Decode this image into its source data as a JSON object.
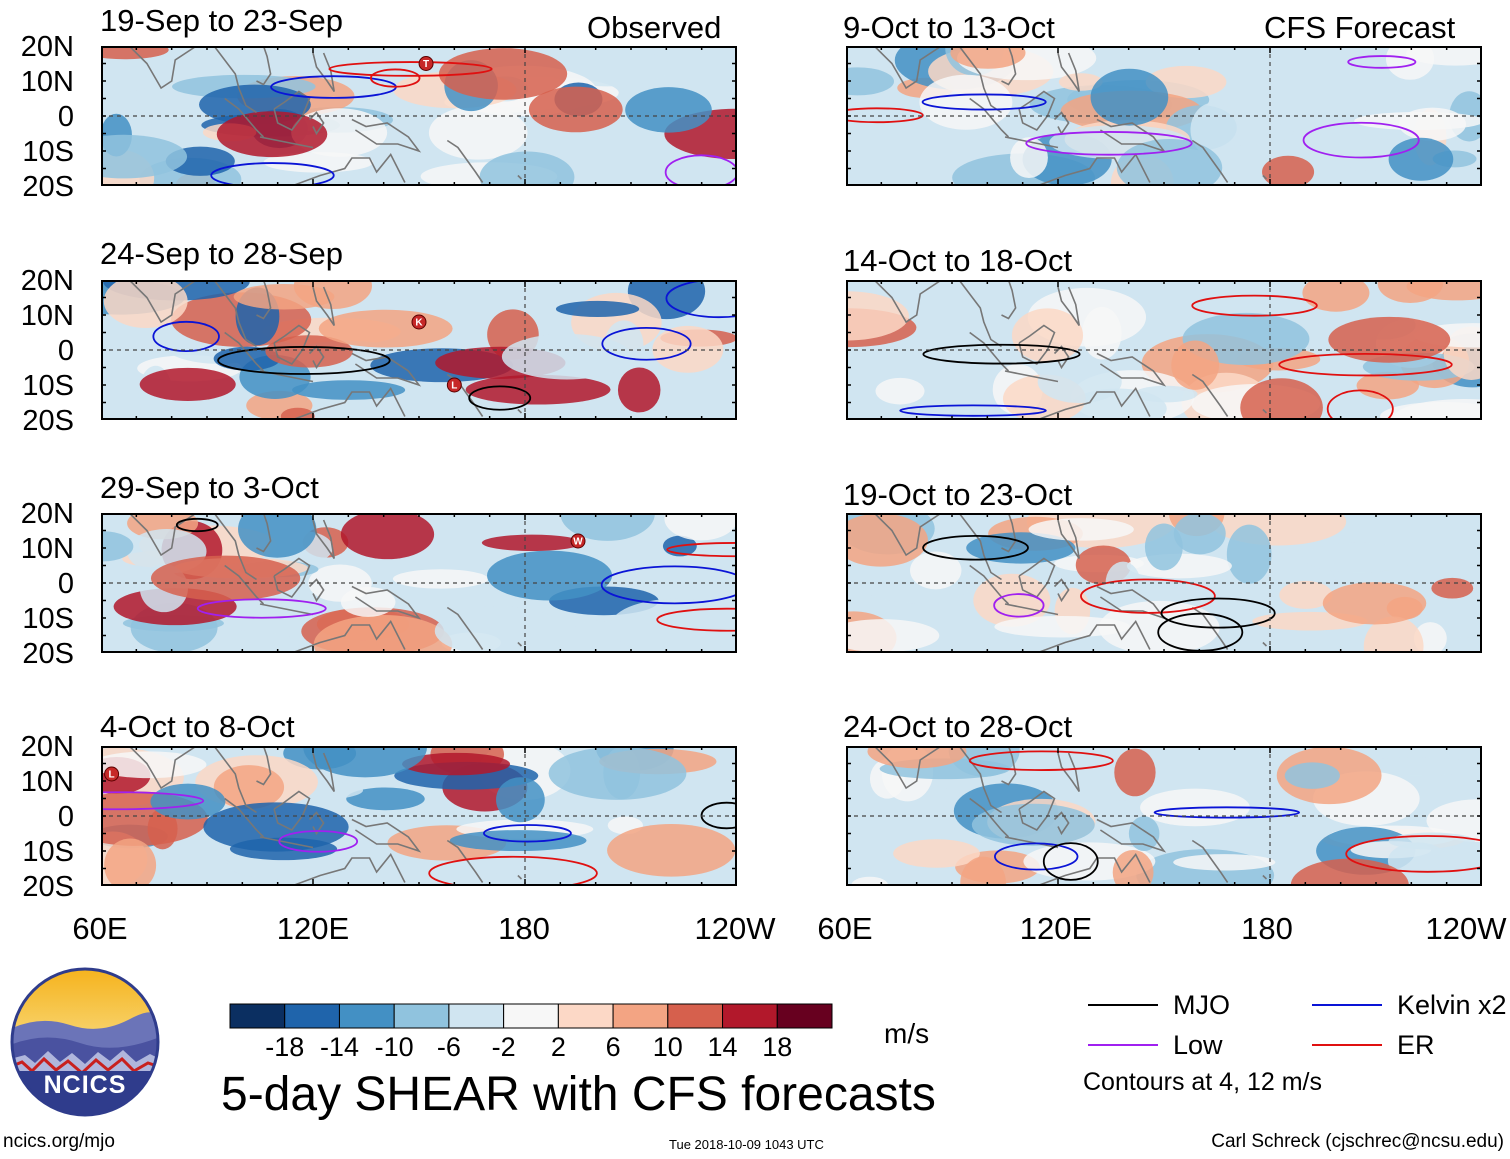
{
  "chart_data": {
    "type": "heatmap",
    "title": "5-day SHEAR with CFS forecasts",
    "units": "m/s",
    "column_headers": [
      "Observed",
      "CFS Forecast"
    ],
    "latitude_ticks": [
      "20N",
      "10N",
      "0",
      "10S",
      "20S"
    ],
    "longitude_ticks": [
      "60E",
      "120E",
      "180",
      "120W"
    ],
    "lat_range": [
      -20,
      20
    ],
    "lon_range": [
      60,
      240
    ],
    "observed_panels": [
      {
        "period": "19-Sep to 23-Sep"
      },
      {
        "period": "24-Sep to 28-Sep"
      },
      {
        "period": "29-Sep to 3-Oct"
      },
      {
        "period": "4-Oct to 8-Oct"
      }
    ],
    "forecast_panels": [
      {
        "period": "9-Oct to 13-Oct"
      },
      {
        "period": "14-Oct to 18-Oct"
      },
      {
        "period": "19-Oct to 23-Oct"
      },
      {
        "period": "24-Oct to 28-Oct"
      }
    ],
    "colorbar": {
      "ticks": [
        "-18",
        "-14",
        "-10",
        "-6",
        "-2",
        "2",
        "6",
        "10",
        "14",
        "18"
      ],
      "colors": [
        "#0b2f61",
        "#1f64ab",
        "#4390c4",
        "#90c3de",
        "#d0e5f1",
        "#f7f7f7",
        "#fcd8c6",
        "#f3a483",
        "#d6604d",
        "#b2182b",
        "#67001f"
      ]
    },
    "legend": [
      {
        "label": "MJO",
        "color": "#000000"
      },
      {
        "label": "Kelvin x2",
        "color": "#0a14d6"
      },
      {
        "label": "Low",
        "color": "#a020f0"
      },
      {
        "label": "ER",
        "color": "#e01010"
      }
    ],
    "contour_note": "Contours at 4, 12 m/s",
    "storm_markers": [
      {
        "panel": 0,
        "letter": "T"
      },
      {
        "panel": 1,
        "letter": "K"
      },
      {
        "panel": 1,
        "letter": "L"
      },
      {
        "panel": 2,
        "letter": "W"
      },
      {
        "panel": 3,
        "letter": "L"
      }
    ]
  },
  "footer": {
    "logo_text": "NCICS",
    "url": "ncics.org/mjo",
    "timestamp": "Tue 2018-10-09 1043 UTC",
    "credit": "Carl Schreck (cjschrec@ncsu.edu)"
  }
}
